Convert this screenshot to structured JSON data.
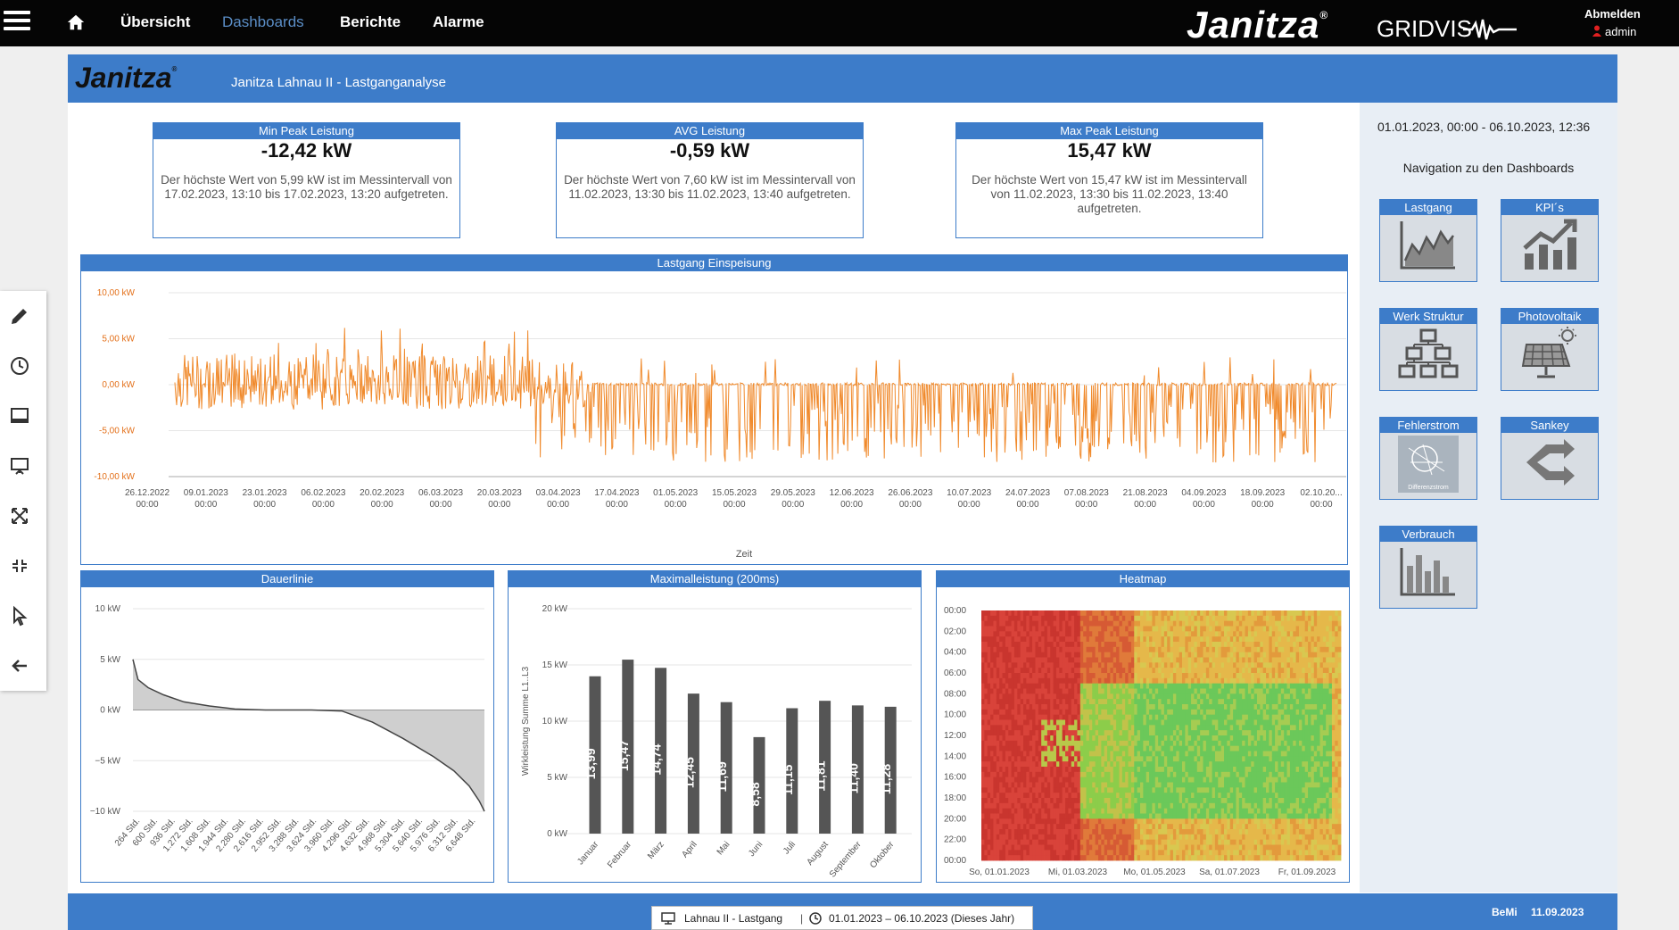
{
  "topbar": {
    "nav": [
      "Übersicht",
      "Dashboards",
      "Berichte",
      "Alarme"
    ],
    "brand": "Janitza",
    "brand_mark": "®",
    "product": "GRIDVIS",
    "logout": "Abmelden",
    "user": "admin"
  },
  "dashboard": {
    "logo": "Janitza",
    "logo_mark": "®",
    "title": "Janitza Lahnau II - Lastganganalyse"
  },
  "kpis": [
    {
      "label": "Min Peak Leistung",
      "value": "-12,42 kW",
      "description": "Der höchste Wert von 5,99 kW ist im Messintervall von 17.02.2023, 13:10 bis 17.02.2023, 13:20 aufgetreten."
    },
    {
      "label": "AVG Leistung",
      "value": "-0,59 kW",
      "description": "Der höchste Wert von 7,60 kW ist im Messintervall von 11.02.2023, 13:30 bis 11.02.2023, 13:40 aufgetreten."
    },
    {
      "label": "Max Peak Leistung",
      "value": "15,47 kW",
      "description": "Der höchste Wert von 15,47 kW ist im Messintervall von 11.02.2023, 13:30 bis 11.02.2023, 13:40 aufgetreten."
    }
  ],
  "lastgang": {
    "title": "Lastgang Einspeisung",
    "xlabel": "Zeit",
    "yticks": [
      "10,00 kW",
      "5,00 kW",
      "0,00 kW",
      "-5,00 kW",
      "-10,00 kW"
    ],
    "xticks": [
      "26.12.2022",
      "09.01.2023",
      "23.01.2023",
      "06.02.2023",
      "20.02.2023",
      "06.03.2023",
      "20.03.2023",
      "03.04.2023",
      "17.04.2023",
      "01.05.2023",
      "15.05.2023",
      "29.05.2023",
      "12.06.2023",
      "26.06.2023",
      "10.07.2023",
      "24.07.2023",
      "07.08.2023",
      "21.08.2023",
      "04.09.2023",
      "18.09.2023",
      "02.10.20..."
    ],
    "xtick_time": "00:00"
  },
  "dauerlinie": {
    "title": "Dauerlinie",
    "yticks": [
      "10 kW",
      "5 kW",
      "0 kW",
      "−5 kW",
      "−10 kW"
    ],
    "xticks": [
      "264 Std.",
      "600 Std.",
      "936 Std.",
      "1.272 Std.",
      "1.608 Std.",
      "1.944 Std.",
      "2.280 Std.",
      "2.616 Std.",
      "2.952 Std.",
      "3.288 Std.",
      "3.624 Std.",
      "3.960 Std.",
      "4.296 Std.",
      "4.632 Std.",
      "4.968 Std.",
      "5.304 Std.",
      "5.640 Std.",
      "5.976 Std.",
      "6.312 Std.",
      "6.648 Std."
    ]
  },
  "maximalleistung": {
    "title": "Maximalleistung (200ms)",
    "ylabel": "Wirkleistung Summe L1..L3",
    "yticks": [
      "20 kW",
      "15 kW",
      "10 kW",
      "5 kW",
      "0 kW"
    ]
  },
  "heatmap": {
    "title": "Heatmap",
    "yticks": [
      "00:00",
      "02:00",
      "04:00",
      "06:00",
      "08:00",
      "10:00",
      "12:00",
      "14:00",
      "16:00",
      "18:00",
      "20:00",
      "22:00",
      "00:00"
    ],
    "xticks": [
      "So, 01.01.2023",
      "Mi, 01.03.2023",
      "Mo, 01.05.2023",
      "Sa, 01.07.2023",
      "Fr, 01.09.2023"
    ]
  },
  "rightnav": {
    "daterange": "01.01.2023, 00:00 - 06.10.2023, 12:36",
    "heading": "Navigation zu den Dashboards",
    "tiles": [
      "Lastgang",
      "KPI´s",
      "Werk Struktur",
      "Photovoltaik",
      "Fehlerstrom",
      "Sankey",
      "Verbrauch"
    ],
    "fehlerstrom_caption": "Differenzstrom"
  },
  "footer": {
    "view": "Lahnau II - Lastgang",
    "range": "01.01.2023 – 06.10.2023 (Dieses Jahr)",
    "user": "BeMi",
    "date": "11.09.2023"
  },
  "colors": {
    "primary": "#3d7cc9",
    "series": "#f08a2c",
    "bar": "#555555"
  },
  "chart_data": [
    {
      "type": "bar",
      "title": "Maximalleistung (200ms)",
      "ylabel": "Wirkleistung Summe L1..L3",
      "categories": [
        "Januar",
        "Februar",
        "März",
        "April",
        "Mai",
        "Juni",
        "Juli",
        "August",
        "September",
        "Oktober"
      ],
      "values": [
        13.99,
        15.47,
        14.74,
        12.45,
        11.69,
        8.58,
        11.15,
        11.81,
        11.4,
        11.28
      ],
      "labels": [
        "13,99",
        "15,47",
        "14,74",
        "12,45",
        "11,69",
        "8,58",
        "11,15",
        "11,81",
        "11,40",
        "11,28"
      ],
      "ylim": [
        0,
        20
      ]
    },
    {
      "type": "area",
      "title": "Dauerlinie",
      "x": [
        0,
        100,
        300,
        600,
        1000,
        1500,
        2000,
        2600,
        3500,
        4100,
        4700,
        5300,
        5900,
        6300,
        6600,
        6800,
        6900
      ],
      "values": [
        5.0,
        3.0,
        2.2,
        1.5,
        0.8,
        0.4,
        0.1,
        0.0,
        0.0,
        -0.1,
        -1.2,
        -2.8,
        -4.6,
        -6.0,
        -7.5,
        -9.0,
        -10.0
      ],
      "ylim": [
        -10,
        10
      ]
    },
    {
      "type": "line",
      "title": "Lastgang Einspeisung",
      "xlabel": "Zeit",
      "ylim": [
        -10,
        10
      ]
    },
    {
      "type": "heatmap",
      "title": "Heatmap"
    }
  ]
}
